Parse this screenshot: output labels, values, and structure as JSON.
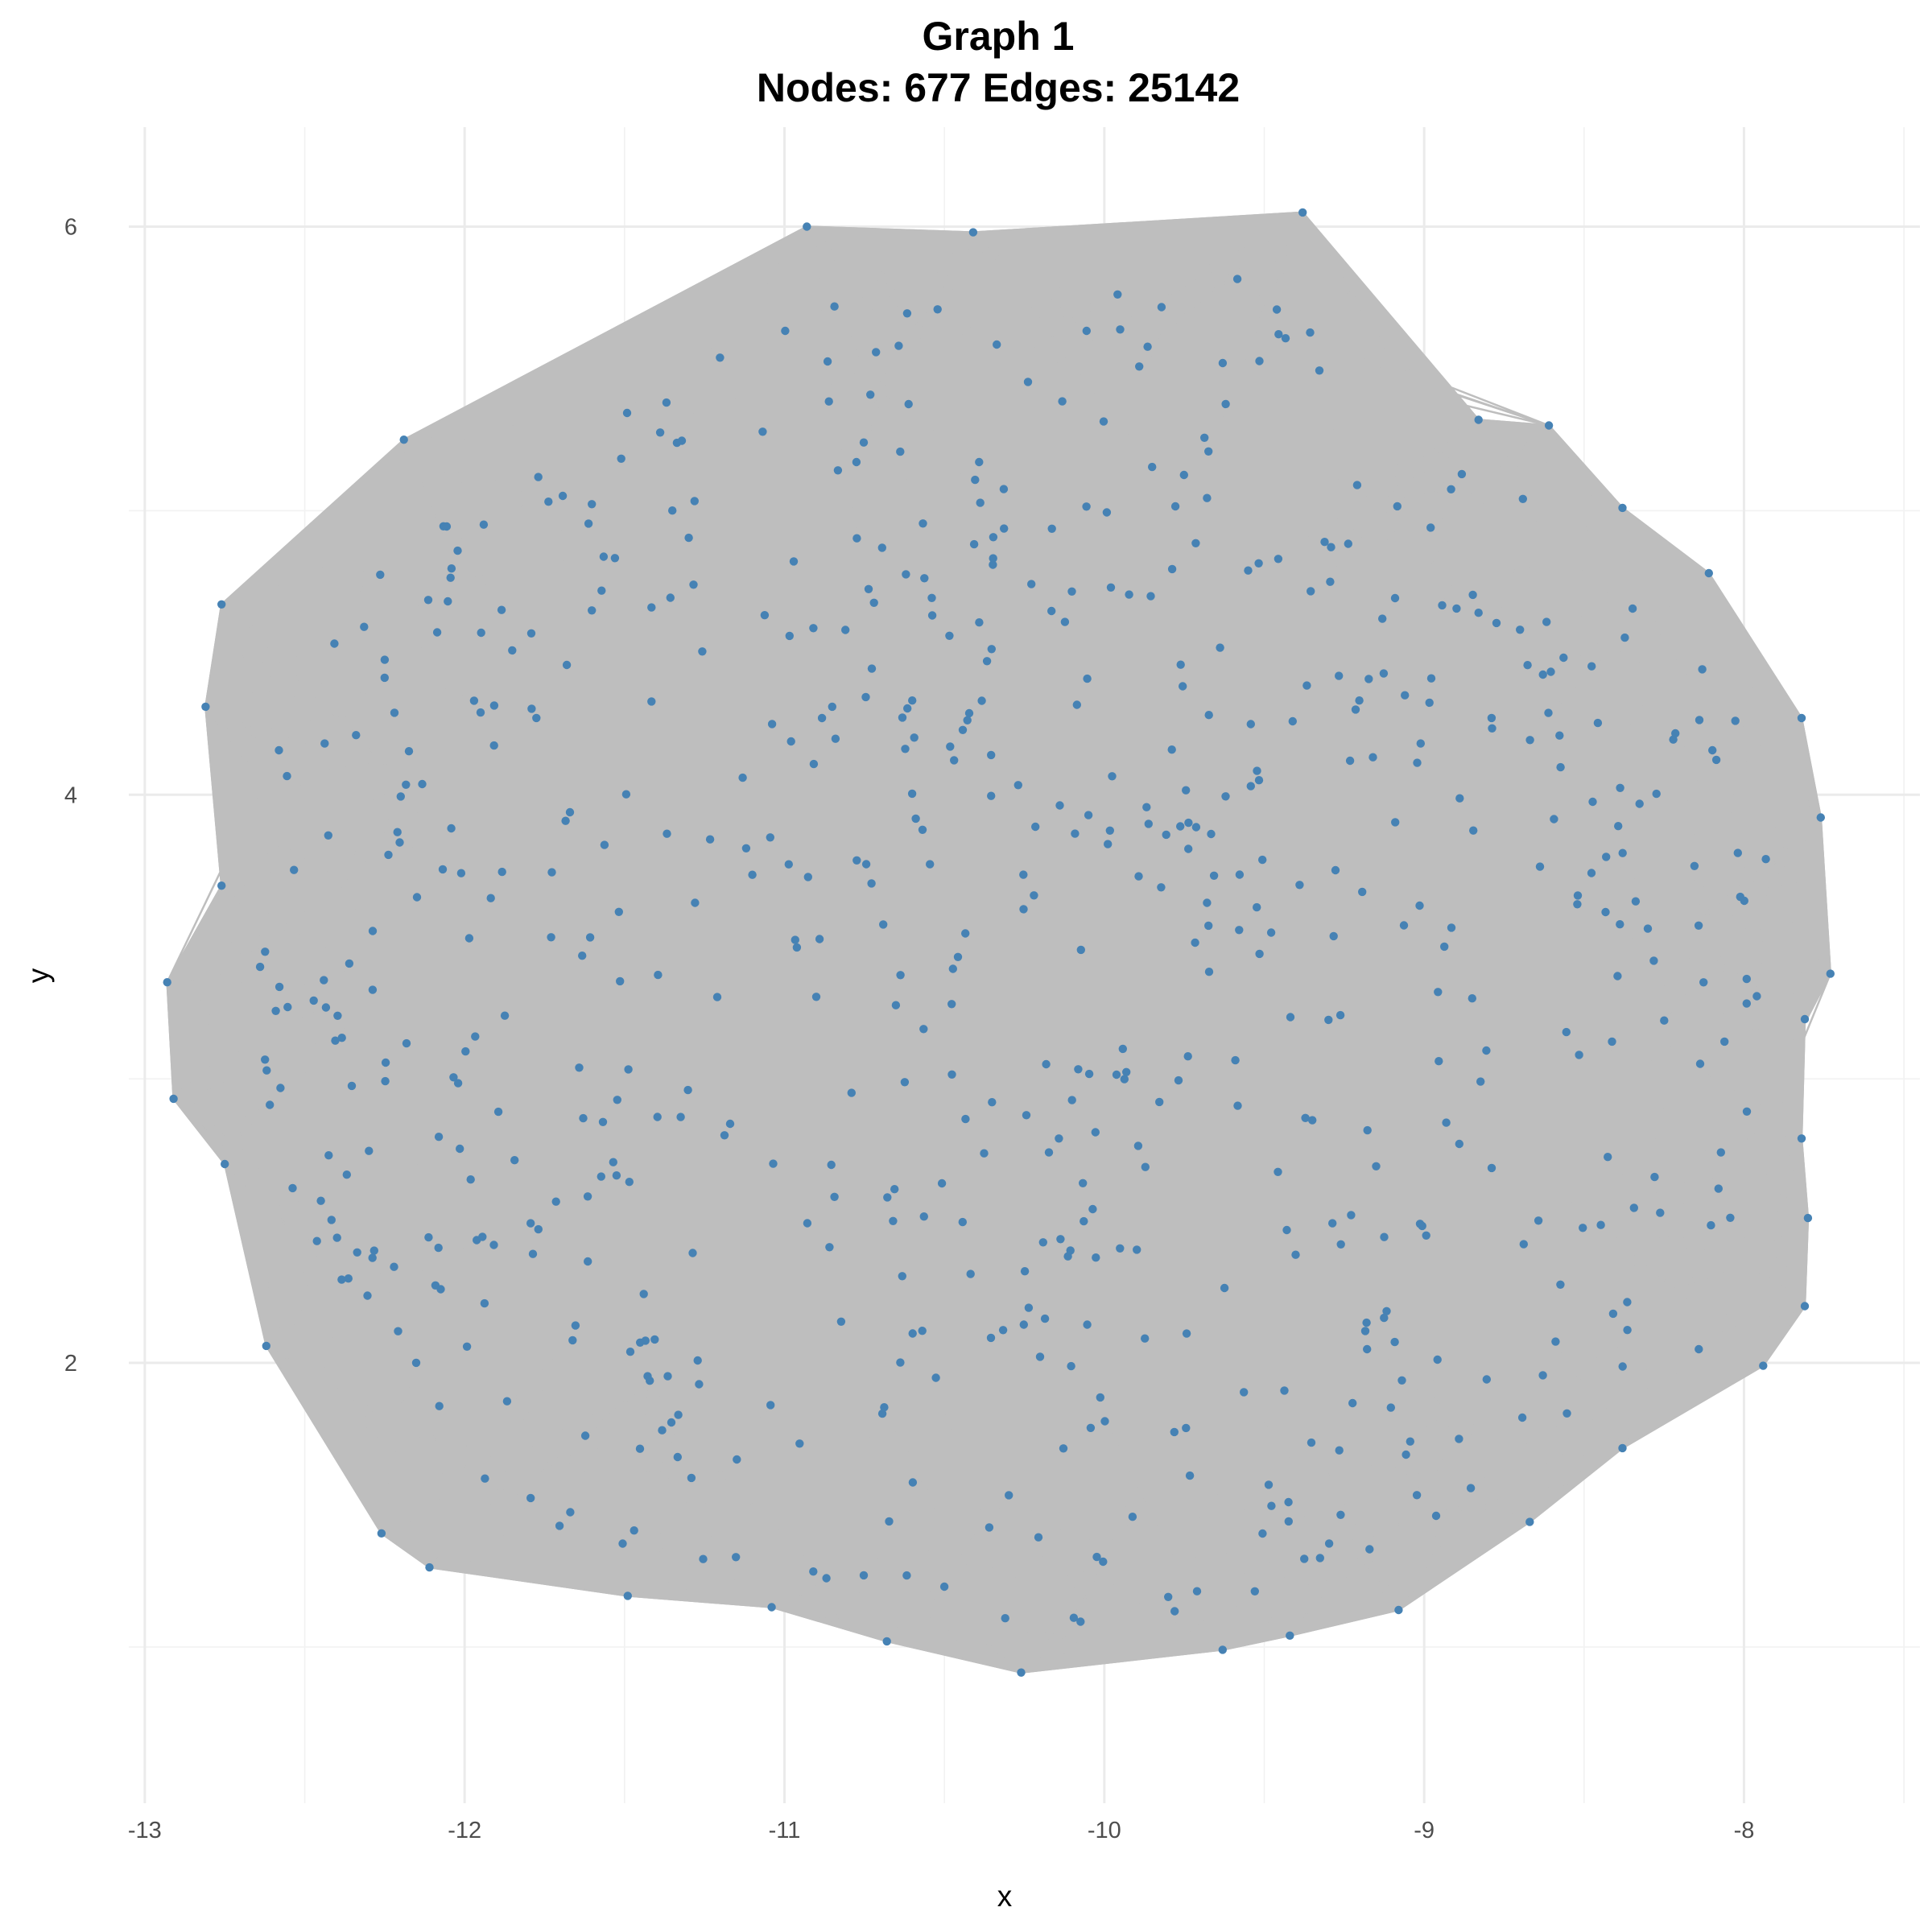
{
  "chart_data": {
    "type": "scatter",
    "title_line1": "Graph 1",
    "title_line2": "Nodes: 677 Edges: 25142",
    "xlabel": "x",
    "ylabel": "y",
    "xlim": [
      -13.05,
      -7.45
    ],
    "ylim": [
      0.45,
      6.35
    ],
    "xticks": [
      -13,
      -12,
      -11,
      -10,
      -9,
      -8
    ],
    "yticks": [
      2,
      4,
      6
    ],
    "xtick_labels": [
      "-13",
      "-12",
      "-11",
      "-10",
      "-9",
      "-8"
    ],
    "ytick_labels": [
      "2",
      "4",
      "6"
    ],
    "grid": true,
    "legend": "none",
    "node_color": "#4682b4",
    "edge_color": "#bebebe",
    "node_count": 677,
    "edge_count": 25142,
    "boundary_nodes": [
      [
        -12.93,
        3.34
      ],
      [
        -12.91,
        2.93
      ],
      [
        -12.75,
        2.7
      ],
      [
        -12.62,
        2.06
      ],
      [
        -12.26,
        1.4
      ],
      [
        -12.11,
        1.28
      ],
      [
        -11.49,
        1.18
      ],
      [
        -11.04,
        1.14
      ],
      [
        -10.68,
        1.02
      ],
      [
        -10.26,
        0.91
      ],
      [
        -9.63,
        0.99
      ],
      [
        -9.42,
        1.04
      ],
      [
        -9.08,
        1.13
      ],
      [
        -8.67,
        1.44
      ],
      [
        -8.38,
        1.7
      ],
      [
        -7.94,
        1.99
      ],
      [
        -7.81,
        2.2
      ],
      [
        -7.8,
        2.51
      ],
      [
        -7.82,
        2.79
      ],
      [
        -7.81,
        3.21
      ],
      [
        -7.73,
        3.37
      ],
      [
        -7.76,
        3.92
      ],
      [
        -7.82,
        4.27
      ],
      [
        -8.11,
        4.78
      ],
      [
        -8.38,
        5.01
      ],
      [
        -8.61,
        5.3
      ],
      [
        -8.83,
        5.32
      ],
      [
        -9.38,
        6.05
      ],
      [
        -10.41,
        5.98
      ],
      [
        -10.93,
        6.0
      ],
      [
        -12.19,
        5.25
      ],
      [
        -12.76,
        4.67
      ],
      [
        -12.81,
        4.31
      ],
      [
        -12.76,
        3.68
      ]
    ]
  }
}
